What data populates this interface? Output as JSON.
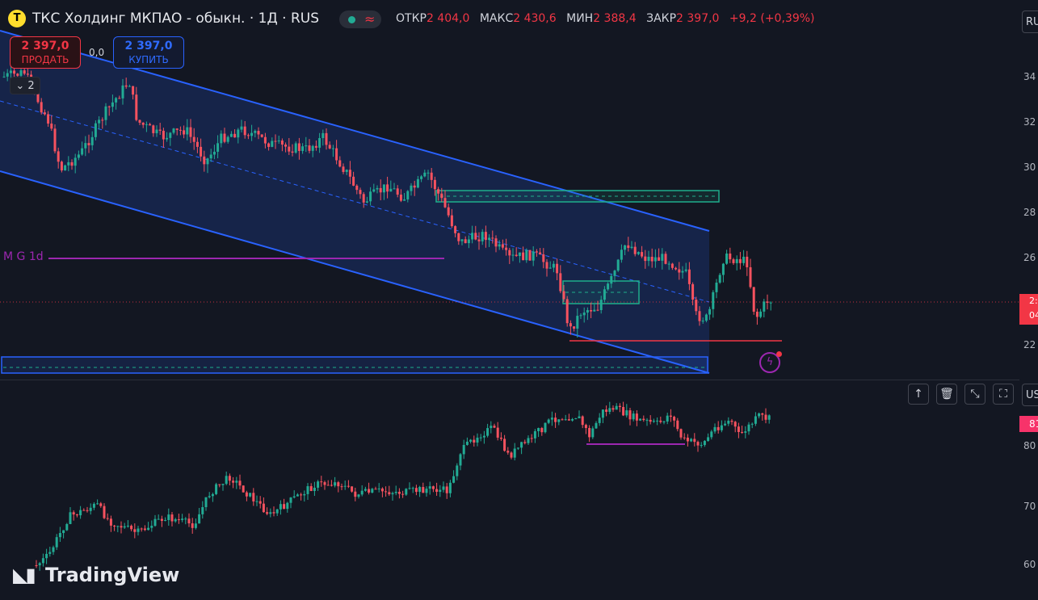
{
  "header": {
    "logo_letter": "Т",
    "title": "ТКС Холдинг МКПАО - обыкн. · 1Д · RUS",
    "status_glyph": "≈",
    "ohlc": [
      {
        "label": "ОТКР",
        "value": "2 404,0"
      },
      {
        "label": "МАКС",
        "value": "2 430,6"
      },
      {
        "label": "МИН",
        "value": "2 388,4"
      },
      {
        "label": "ЗАКР",
        "value": "2 397,0"
      }
    ],
    "change": "+9,2 (+0,39%)",
    "symbol_button": "RU"
  },
  "trade": {
    "sell_price": "2 397,0",
    "sell_label": "ПРОДАТЬ",
    "spread": "0,0",
    "buy_price": "2 397,0",
    "buy_label": "КУПИТЬ"
  },
  "indicators_collapse": {
    "glyph": "⌄",
    "count": "2"
  },
  "annotations": {
    "mg_label": "M G 1d"
  },
  "price_axis": {
    "ticks": [
      "34",
      "32",
      "30",
      "28",
      "26",
      "22"
    ],
    "last_price_tag": [
      "2:",
      "04"
    ]
  },
  "indicator_pane": {
    "currency_button": "US",
    "last_value_tag": "81",
    "ticks": [
      "80",
      "70",
      "60"
    ],
    "tools": [
      {
        "name": "move-up-icon",
        "glyph": "↑"
      },
      {
        "name": "delete-icon",
        "glyph": "🗑"
      },
      {
        "name": "collapse-icon",
        "glyph": "⤡"
      },
      {
        "name": "maximize-icon",
        "glyph": "⛶"
      }
    ]
  },
  "colors": {
    "bull": "#22ab94",
    "bear": "#f7525f",
    "channel": "#2962ff",
    "zone": "#1fae8c",
    "level": "#f23645",
    "annotation": "#9c27b0"
  },
  "watermark": "TradingView"
}
